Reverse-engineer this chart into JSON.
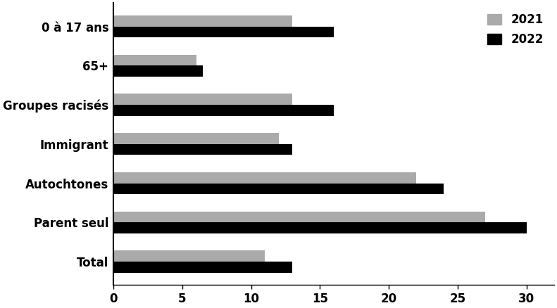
{
  "categories": [
    "Total",
    "Parent seul",
    "Autochtones",
    "Immigrant",
    "Groupes racisés",
    "65+",
    "0 à 17 ans"
  ],
  "values_2021": [
    11,
    27,
    22,
    12,
    13,
    6,
    13
  ],
  "values_2022": [
    13,
    30,
    24,
    13,
    16,
    6.5,
    16
  ],
  "color_2021": "#aaaaaa",
  "color_2022": "#000000",
  "label_2021": "2021",
  "label_2022": "2022",
  "xlim": [
    0,
    32
  ],
  "xticks": [
    0,
    5,
    10,
    15,
    20,
    25,
    30
  ],
  "bar_height": 0.28,
  "background_color": "#ffffff",
  "figsize": [
    7.91,
    4.38
  ],
  "dpi": 100,
  "label_fontsize": 12,
  "tick_fontsize": 12
}
